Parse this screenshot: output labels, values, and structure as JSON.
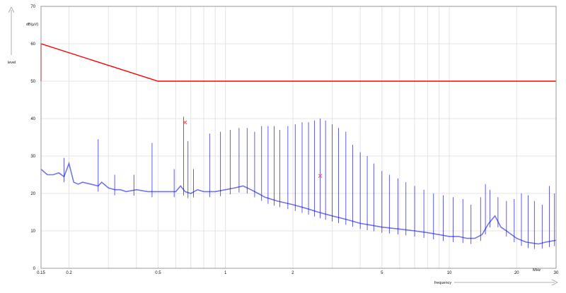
{
  "colors": {
    "limit": "#ff0000",
    "trace": "#0000dd",
    "marker": "#ff4444",
    "grid": "#e4e4e4",
    "axis": "#999999"
  },
  "chart_data": {
    "type": "line",
    "title": "",
    "xlabel": "frequency",
    "ylabel": "level",
    "yunit": "dB(µV)",
    "xunit": "MHz",
    "xscale": "log",
    "xlim": [
      0.15,
      30
    ],
    "ylim": [
      0,
      70
    ],
    "grid": true,
    "xticks": [
      {
        "v": 0.15,
        "label": "0.15"
      },
      {
        "v": 0.2,
        "label": "0.2"
      },
      {
        "v": 0.5,
        "label": "0.5"
      },
      {
        "v": 1,
        "label": "1"
      },
      {
        "v": 2,
        "label": "2"
      },
      {
        "v": 5,
        "label": "5"
      },
      {
        "v": 10,
        "label": "10"
      },
      {
        "v": 20,
        "label": "20"
      },
      {
        "v": 30,
        "label": "30"
      }
    ],
    "xgrid_minor": [
      0.3,
      0.4,
      0.6,
      0.7,
      0.8,
      0.9,
      3,
      4,
      6,
      7,
      8,
      9
    ],
    "yticks": [
      0,
      10,
      20,
      30,
      40,
      50,
      60,
      70
    ],
    "series": [
      {
        "id": "limit",
        "style": "limit",
        "x": [
          0.15,
          0.15,
          0.5,
          30
        ],
        "y": [
          50,
          60,
          50,
          50
        ]
      },
      {
        "id": "measurement",
        "style": "trace",
        "x": [
          0.15,
          0.16,
          0.17,
          0.18,
          0.19,
          0.2,
          0.21,
          0.22,
          0.23,
          0.25,
          0.27,
          0.28,
          0.3,
          0.32,
          0.34,
          0.36,
          0.4,
          0.45,
          0.5,
          0.55,
          0.6,
          0.63,
          0.66,
          0.7,
          0.75,
          0.8,
          0.9,
          1.0,
          1.1,
          1.2,
          1.3,
          1.4,
          1.5,
          1.7,
          2.0,
          2.3,
          2.6,
          3.0,
          3.5,
          4.0,
          4.5,
          5.0,
          6.0,
          7.0,
          8.0,
          9.0,
          10,
          11,
          12,
          13,
          14,
          15,
          16,
          17,
          18,
          20,
          22,
          25,
          27,
          30
        ],
        "y": [
          26.5,
          25,
          25,
          25.5,
          24.5,
          28,
          23,
          22.5,
          23,
          22.5,
          22,
          23,
          21.5,
          21,
          21,
          20.5,
          21,
          20.5,
          20.5,
          20.5,
          20.5,
          22,
          20.5,
          20,
          21,
          20.5,
          20.5,
          21,
          21.5,
          22,
          21,
          20,
          19,
          18,
          17,
          16,
          15,
          14,
          13,
          12,
          11.5,
          11,
          10.5,
          10,
          9.5,
          9,
          8.5,
          8.5,
          8,
          8,
          9,
          12,
          14,
          11,
          10,
          8,
          7,
          6.5,
          7,
          7.5
        ]
      },
      {
        "id": "peaks",
        "style": "spikes",
        "x": [
          0.19,
          0.27,
          0.32,
          0.39,
          0.47,
          0.59,
          0.65,
          0.68,
          0.72,
          0.85,
          0.95,
          1.05,
          1.15,
          1.25,
          1.35,
          1.45,
          1.55,
          1.65,
          1.75,
          1.9,
          2.05,
          2.2,
          2.35,
          2.5,
          2.65,
          2.8,
          3.0,
          3.2,
          3.45,
          3.7,
          4.0,
          4.3,
          4.6,
          5.0,
          5.4,
          5.9,
          6.4,
          7.0,
          7.7,
          8.5,
          9.4,
          10.4,
          11.5,
          12.5,
          13.8,
          14.5,
          15.2,
          16.5,
          18,
          19.5,
          21,
          22.5,
          24,
          26,
          28,
          29.5
        ],
        "y": [
          29.5,
          34.5,
          25,
          25,
          33.5,
          26.5,
          40.5,
          34,
          26.5,
          36,
          36.5,
          37,
          37.5,
          37.5,
          36.5,
          38,
          38,
          38,
          37,
          38,
          38.5,
          39,
          39,
          39.5,
          40,
          39.5,
          38.5,
          37.5,
          36.5,
          33,
          31,
          30,
          28,
          26,
          25,
          24,
          23,
          22,
          21,
          20,
          19.5,
          19,
          18.5,
          17,
          19,
          22.5,
          21,
          19,
          18,
          18.5,
          20,
          19.5,
          18,
          17,
          22,
          20
        ]
      },
      {
        "id": "markers",
        "style": "markers",
        "x": [
          0.66,
          2.65
        ],
        "y": [
          39,
          24.7
        ]
      }
    ]
  }
}
